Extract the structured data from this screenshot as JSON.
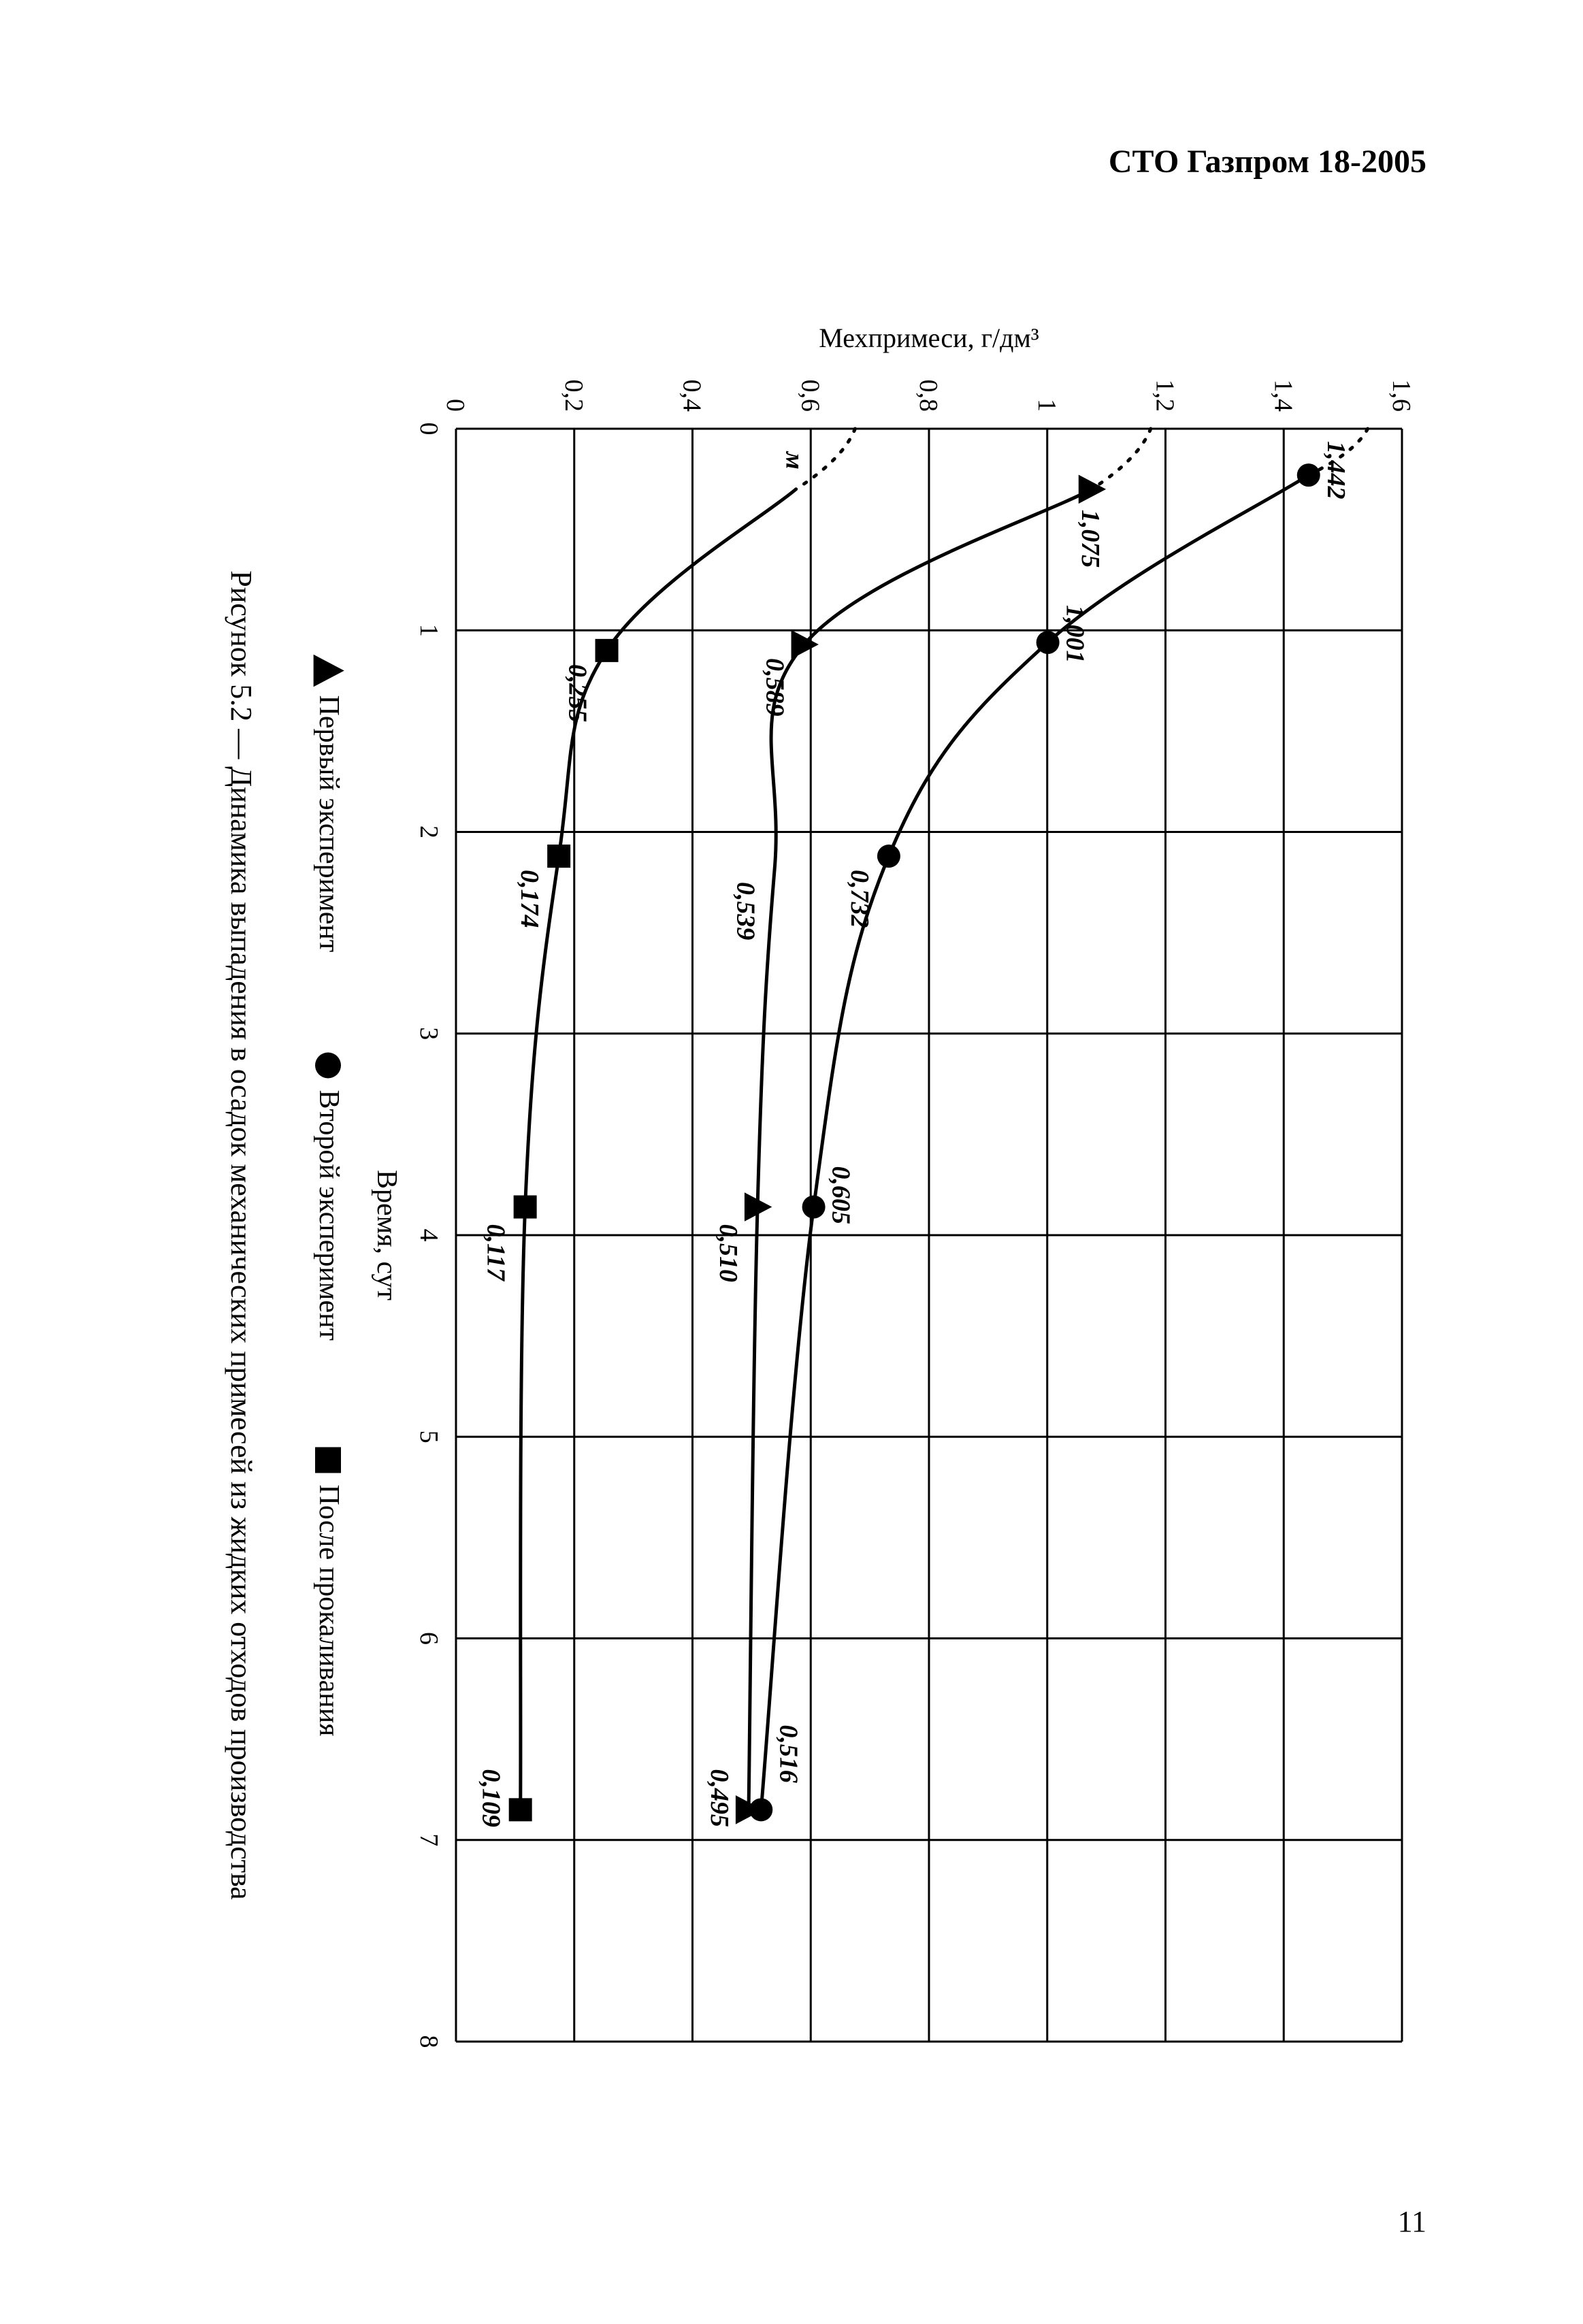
{
  "doc": {
    "header": "СТО Газпром 18-2005",
    "page_number": "11"
  },
  "chart": {
    "type": "line",
    "x_title": "Время, сут",
    "y_title": "Мехпримеси, г/дм³",
    "xlim": [
      0,
      8
    ],
    "ylim": [
      0,
      1.6
    ],
    "xticks": [
      "0",
      "1",
      "2",
      "3",
      "4",
      "5",
      "6",
      "7",
      "8"
    ],
    "yticks": [
      "0",
      "0,2",
      "0,4",
      "0,6",
      "0,8",
      "1",
      "1,2",
      "1,4",
      "1,6"
    ],
    "background_color": "#ffffff",
    "grid_color": "#000000",
    "axis_color": "#000000",
    "series": [
      {
        "id": "second",
        "legend": "Второй эксперимент",
        "marker": "circle",
        "color": "#000000",
        "line_width_main": 5,
        "start_dotted": true,
        "points": [
          {
            "x": 0.23,
            "y": 1.442,
            "label": "1,442",
            "label_dx": -50,
            "label_dy": -28
          },
          {
            "x": 1.06,
            "y": 1.001,
            "label": "1,001",
            "label_dx": -55,
            "label_dy": -28
          },
          {
            "x": 2.12,
            "y": 0.732,
            "label": "0,732",
            "label_dx": 20,
            "label_dy": 55
          },
          {
            "x": 3.86,
            "y": 0.605,
            "label": "0,605",
            "label_dx": -60,
            "label_dy": -28
          },
          {
            "x": 6.85,
            "y": 0.516,
            "label": "0,516",
            "label_dx": -125,
            "label_dy": -28
          }
        ]
      },
      {
        "id": "first",
        "legend": "Первый эксперимент",
        "marker": "triangle",
        "color": "#000000",
        "line_width_main": 5,
        "start_dotted": true,
        "points": [
          {
            "x": 0.3,
            "y": 1.075,
            "label": "1,075",
            "label_dx": 30,
            "label_dy": 14
          },
          {
            "x": 1.07,
            "y": 0.589,
            "label": "0,589",
            "label_dx": 20,
            "label_dy": 55
          },
          {
            "x": 2.18,
            "y": 0.539,
            "label": "0,539",
            "label_dx": 20,
            "label_dy": 55,
            "skip_marker": true
          },
          {
            "x": 3.86,
            "y": 0.51,
            "label": "0,510",
            "label_dx": 25,
            "label_dy": 55
          },
          {
            "x": 6.85,
            "y": 0.495,
            "label": "0,495",
            "label_dx": -60,
            "label_dy": 55
          }
        ]
      },
      {
        "id": "calc",
        "legend": "После прокаливания",
        "marker": "square",
        "color": "#000000",
        "line_width_main": 5,
        "start_dotted": true,
        "points": [
          {
            "x": 0.3,
            "y": 0.575,
            "label": "м",
            "label_dx": -55,
            "label_dy": 14,
            "skip_marker": true
          },
          {
            "x": 1.1,
            "y": 0.255,
            "label": "0,255",
            "label_dx": 20,
            "label_dy": 55
          },
          {
            "x": 2.12,
            "y": 0.174,
            "label": "0,174",
            "label_dx": 20,
            "label_dy": 55
          },
          {
            "x": 3.86,
            "y": 0.117,
            "label": "0,117",
            "label_dx": 25,
            "label_dy": 55
          },
          {
            "x": 6.85,
            "y": 0.109,
            "label": "0,109",
            "label_dx": -60,
            "label_dy": 55
          }
        ]
      }
    ],
    "legend_position": "bottom",
    "caption": "Рисунок 5.2 — Динамика выпадения в осадок механических примесей из жидких отходов производства"
  },
  "style": {
    "tick_fontsize": 38,
    "axis_title_fontsize": 42,
    "data_label_fontsize": 38,
    "legend_fontsize": 42,
    "caption_fontsize": 44,
    "marker_size": 17,
    "line_color": "#000000"
  }
}
